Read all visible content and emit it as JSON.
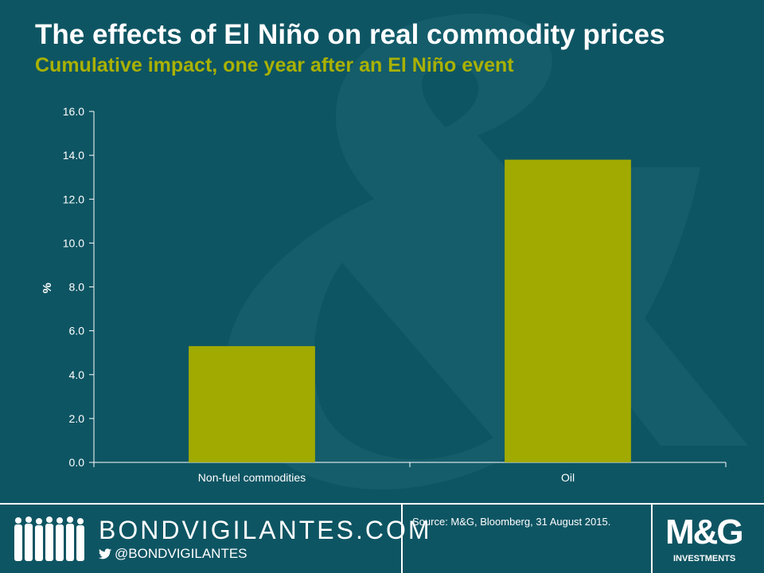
{
  "header": {
    "title": "The effects of El Niño on real commodity prices",
    "subtitle": "Cumulative impact, one year after an El Niño event"
  },
  "colors": {
    "background": "#0e5563",
    "bar": "#a0aa00",
    "accent": "#a9b100",
    "axis": "#ffffff"
  },
  "chart_data": {
    "type": "bar",
    "categories": [
      "Non-fuel commodities",
      "Oil"
    ],
    "values": [
      5.3,
      13.8
    ],
    "ylabel": "%",
    "ylim": [
      0,
      16
    ],
    "yticks": [
      "0.0",
      "2.0",
      "4.0",
      "6.0",
      "8.0",
      "10.0",
      "12.0",
      "14.0",
      "16.0"
    ],
    "grid": false,
    "legend": "none"
  },
  "footer": {
    "brand": "BONDVIGILANTES.COM",
    "handle": "@BONDVIGILANTES",
    "twitter_icon": "twitter-bird-icon",
    "source": "Source: M&G, Bloomberg, 31 August 2015.",
    "logo_text": "M&G",
    "logo_subtext": "INVESTMENTS"
  }
}
